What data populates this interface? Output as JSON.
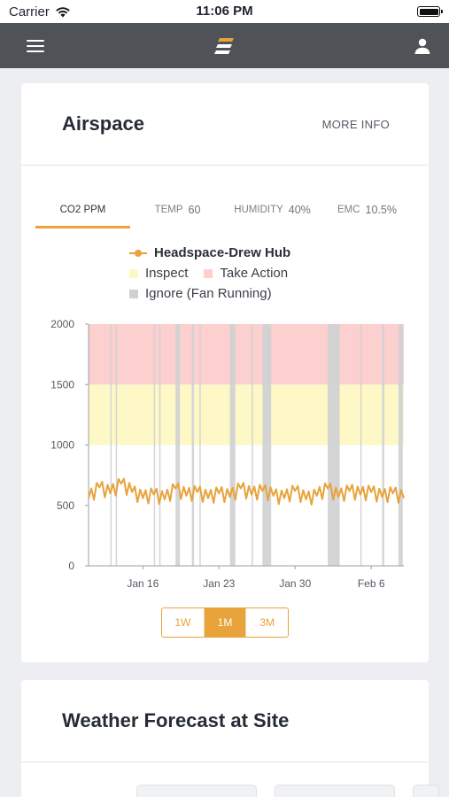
{
  "status_bar": {
    "carrier": "Carrier",
    "time": "11:06 PM"
  },
  "airspace": {
    "title": "Airspace",
    "more_info": "MORE INFO",
    "tabs": [
      {
        "label": "CO2 PPM",
        "value": "",
        "active": true
      },
      {
        "label": "TEMP",
        "value": "60",
        "active": false
      },
      {
        "label": "HUMIDITY",
        "value": "40%",
        "active": false
      },
      {
        "label": "EMC",
        "value": "10.5%",
        "active": false
      }
    ],
    "range_buttons": [
      {
        "label": "1W",
        "active": false
      },
      {
        "label": "1M",
        "active": true
      },
      {
        "label": "3M",
        "active": false
      }
    ]
  },
  "weather": {
    "title": "Weather Forecast at Site"
  },
  "colors": {
    "accent": "#e8a33a",
    "inspect": "#fdf8c6",
    "take_action": "#fcd0cf",
    "ignore": "#cfd0d3",
    "app_bar": "#4f5358"
  },
  "chart_data": {
    "type": "line",
    "title": "",
    "xlabel": "",
    "ylabel": "",
    "ylim": [
      0,
      2000
    ],
    "yticks": [
      0,
      500,
      1000,
      1500,
      2000
    ],
    "ytick_labels": [
      "0",
      "500",
      "1000",
      "1500",
      "2000"
    ],
    "xlim": [
      "2020-01-11",
      "2020-02-09"
    ],
    "xticks": [
      "2020-01-16",
      "2020-01-23",
      "2020-01-30",
      "2020-02-06"
    ],
    "xtick_labels": [
      "Jan 16",
      "Jan 23",
      "Jan 30",
      "Feb 6"
    ],
    "legend": [
      {
        "name": "Headspace-Drew Hub",
        "kind": "line",
        "color": "#e8a33a"
      },
      {
        "name": "Inspect",
        "kind": "band",
        "color": "#fdf8c6"
      },
      {
        "name": "Take Action",
        "kind": "band",
        "color": "#fcd0cf"
      },
      {
        "name": "Ignore (Fan Running)",
        "kind": "band",
        "color": "#cfd0d3"
      }
    ],
    "bands": [
      {
        "name": "Inspect",
        "from": 1000,
        "to": 1500
      },
      {
        "name": "Take Action",
        "from": 1500,
        "to": 2000
      }
    ],
    "ignore_intervals": [
      [
        "2020-01-13",
        "2020-01-13.1"
      ],
      [
        "2020-01-13.5",
        "2020-01-13.6"
      ],
      [
        "2020-01-17",
        "2020-01-17.1"
      ],
      [
        "2020-01-17.5",
        "2020-01-17.6"
      ],
      [
        "2020-01-19",
        "2020-01-19.4"
      ],
      [
        "2020-01-20.5",
        "2020-01-20.7"
      ],
      [
        "2020-01-21.2",
        "2020-01-21.3"
      ],
      [
        "2020-01-24",
        "2020-01-24.5"
      ],
      [
        "2020-01-26",
        "2020-01-26.1"
      ],
      [
        "2020-01-27",
        "2020-01-27.8"
      ],
      [
        "2020-02-02",
        "2020-02-03.1"
      ],
      [
        "2020-02-05",
        "2020-02-05.1"
      ],
      [
        "2020-02-07",
        "2020-02-07.2"
      ],
      [
        "2020-02-08.5",
        "2020-02-08.9"
      ]
    ],
    "series": [
      {
        "name": "Headspace-Drew Hub",
        "x": [
          "2020-01-11",
          "2020-01-12",
          "2020-01-13",
          "2020-01-14",
          "2020-01-15",
          "2020-01-16",
          "2020-01-17",
          "2020-01-18",
          "2020-01-19",
          "2020-01-20",
          "2020-01-21",
          "2020-01-22",
          "2020-01-23",
          "2020-01-24",
          "2020-01-25",
          "2020-01-26",
          "2020-01-27",
          "2020-01-28",
          "2020-01-29",
          "2020-01-30",
          "2020-01-31",
          "2020-02-01",
          "2020-02-02",
          "2020-02-03",
          "2020-02-04",
          "2020-02-05",
          "2020-02-06",
          "2020-02-07",
          "2020-02-08",
          "2020-02-09"
        ],
        "values": [
          560,
          650,
          600,
          680,
          610,
          560,
          590,
          550,
          640,
          580,
          610,
          560,
          600,
          570,
          640,
          590,
          620,
          580,
          560,
          620,
          550,
          580,
          640,
          570,
          620,
          590,
          610,
          570,
          600,
          560
        ]
      }
    ]
  }
}
